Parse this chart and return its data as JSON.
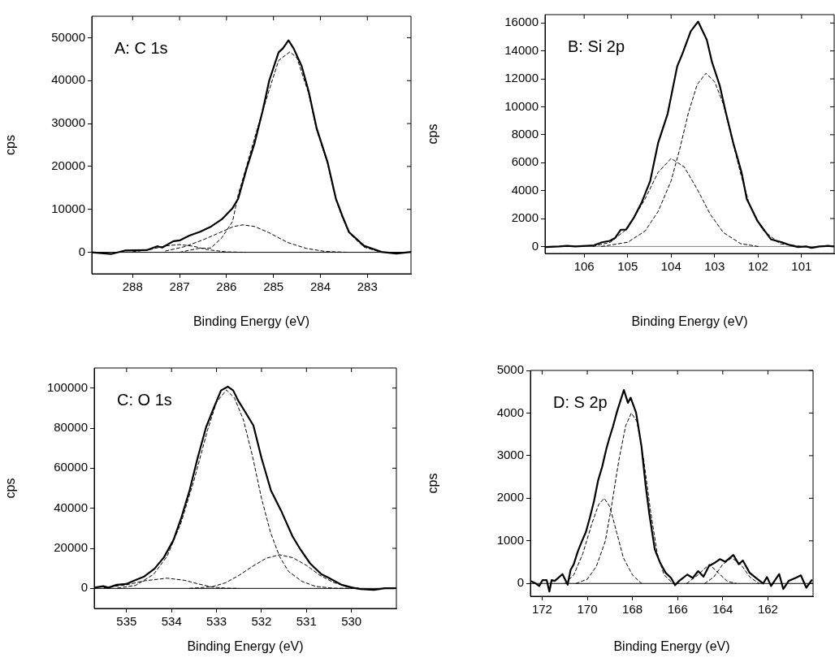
{
  "chart_data": [
    {
      "type": "line",
      "title": "A: C 1s",
      "xlabel": "Binding Energy (eV)",
      "ylabel": "cps",
      "xlim": [
        288.87,
        282.07
      ],
      "ylim": [
        -5000,
        55000
      ],
      "xticks": [
        288,
        287,
        286,
        285,
        284,
        283
      ],
      "yticks": [
        0,
        10000,
        20000,
        30000,
        40000,
        50000
      ],
      "ref_lines": [
        {
          "axis": "y",
          "value": 0,
          "color": "#000000"
        }
      ],
      "series": [
        {
          "color": "#000000",
          "line_style": "solid",
          "x": [
            288.87,
            288.46,
            288.17,
            287.7,
            287.48,
            287.37,
            287.13,
            286.99,
            286.79,
            286.56,
            286.33,
            286.1,
            285.87,
            285.75,
            285.58,
            285.4,
            285.23,
            285.09,
            284.89,
            284.8,
            284.68,
            284.57,
            284.4,
            284.25,
            284.08,
            283.85,
            283.67,
            283.53,
            283.39,
            283.07,
            282.7,
            282.38,
            282.07
          ],
          "values": [
            0,
            -400,
            400,
            500,
            1400,
            1100,
            2600,
            2800,
            3900,
            4800,
            6000,
            7700,
            10300,
            12500,
            19200,
            25500,
            33000,
            40000,
            46600,
            47500,
            49400,
            47500,
            43400,
            37500,
            28900,
            21100,
            12500,
            8400,
            4700,
            1500,
            100,
            -300,
            100
          ]
        },
        {
          "color": "#000000",
          "line_style": "dashed",
          "x": [
            287.0,
            286.6,
            286.33,
            286.1,
            285.87,
            285.75,
            285.58,
            285.35,
            285.1,
            284.89,
            284.65,
            284.5,
            284.25,
            284.08,
            283.85,
            283.67,
            283.53,
            283.39,
            283.07,
            282.7
          ],
          "values": [
            0,
            900,
            1000,
            3400,
            7200,
            13500,
            19800,
            28600,
            37500,
            44700,
            46700,
            45300,
            37000,
            28500,
            20800,
            12300,
            8000,
            4500,
            1200,
            0
          ]
        },
        {
          "color": "#000000",
          "line_style": "dashed",
          "x": [
            287.3,
            286.9,
            286.5,
            286.1,
            285.85,
            285.65,
            285.4,
            285.1,
            284.7,
            284.3,
            283.9,
            283.4
          ],
          "values": [
            300,
            1300,
            2900,
            4800,
            6000,
            6400,
            6000,
            4600,
            2300,
            900,
            200,
            0
          ]
        },
        {
          "color": "#000000",
          "line_style": "dashed",
          "x": [
            288.0,
            287.6,
            287.3,
            287.0,
            286.7,
            286.4,
            286.0,
            285.6
          ],
          "values": [
            100,
            700,
            1500,
            1800,
            1400,
            600,
            100,
            0
          ]
        }
      ]
    },
    {
      "type": "line",
      "title": "B: Si 2p",
      "xlabel": "Binding Energy (eV)",
      "ylabel": "cps",
      "xlim": [
        106.9,
        100.25
      ],
      "ylim": [
        -500,
        16600
      ],
      "xticks": [
        106,
        105,
        104,
        103,
        102,
        101
      ],
      "yticks": [
        0,
        2000,
        4000,
        6000,
        8000,
        10000,
        12000,
        14000,
        16000
      ],
      "ref_lines": [
        {
          "axis": "y",
          "value": 0,
          "color": "#808080"
        }
      ],
      "series": [
        {
          "color": "#000000",
          "line_style": "solid",
          "x": [
            106.88,
            106.58,
            106.39,
            106.2,
            105.78,
            105.59,
            105.41,
            105.29,
            105.16,
            105.04,
            104.85,
            104.67,
            104.48,
            104.3,
            104.08,
            103.86,
            103.74,
            103.55,
            103.38,
            103.18,
            103.06,
            102.88,
            102.75,
            102.57,
            102.38,
            102.26,
            102.01,
            101.7,
            101.45,
            101.27,
            101.08,
            100.9,
            100.77,
            100.59,
            100.4,
            100.26
          ],
          "values": [
            -40,
            0,
            40,
            0,
            80,
            300,
            400,
            600,
            1200,
            1200,
            2100,
            3200,
            4700,
            7400,
            9500,
            12900,
            13800,
            15400,
            16100,
            14800,
            13200,
            11500,
            9700,
            7400,
            5300,
            3400,
            1800,
            500,
            300,
            100,
            -40,
            0,
            -100,
            0,
            40,
            0
          ]
        },
        {
          "color": "#000000",
          "line_style": "dashed",
          "x": [
            105.6,
            105.0,
            104.6,
            104.3,
            104.0,
            103.8,
            103.6,
            103.4,
            103.2,
            103.0,
            102.8,
            102.6,
            102.4,
            102.2,
            101.9,
            101.5,
            101.0
          ],
          "values": [
            0,
            300,
            1100,
            2500,
            4700,
            7000,
            9600,
            11600,
            12400,
            11800,
            10200,
            7700,
            5200,
            3000,
            1200,
            200,
            0
          ]
        },
        {
          "color": "#000000",
          "line_style": "dashed",
          "x": [
            105.8,
            105.4,
            105.0,
            104.6,
            104.3,
            104.0,
            103.7,
            103.4,
            103.1,
            102.8,
            102.4,
            102.0
          ],
          "values": [
            0,
            300,
            1300,
            3400,
            5300,
            6300,
            5700,
            4100,
            2300,
            1000,
            200,
            0
          ]
        }
      ]
    },
    {
      "type": "line",
      "title": "C: O 1s",
      "xlabel": "Binding Energy (eV)",
      "ylabel": "cps",
      "xlim": [
        535.72,
        529.0
      ],
      "ylim": [
        -10000,
        110000
      ],
      "xticks": [
        535,
        534,
        533,
        532,
        531,
        530
      ],
      "yticks": [
        0,
        20000,
        40000,
        60000,
        80000,
        100000
      ],
      "ref_lines": [
        {
          "axis": "y",
          "value": 0,
          "color": "#000000"
        }
      ],
      "series": [
        {
          "color": "#000000",
          "line_style": "solid",
          "x": [
            535.72,
            535.52,
            535.4,
            535.22,
            535.01,
            534.8,
            534.62,
            534.38,
            534.17,
            533.96,
            533.78,
            533.6,
            533.42,
            533.23,
            533.05,
            532.9,
            532.75,
            532.63,
            532.51,
            532.36,
            532.18,
            532.0,
            531.79,
            531.55,
            531.31,
            531.13,
            530.92,
            530.67,
            530.49,
            530.22,
            529.98,
            529.8,
            529.5,
            529.26,
            529.02
          ],
          "values": [
            400,
            1100,
            400,
            1800,
            2200,
            4200,
            5800,
            9800,
            15500,
            24000,
            35500,
            48900,
            65100,
            80600,
            90700,
            98800,
            100700,
            98800,
            93400,
            88000,
            81300,
            65100,
            48900,
            38100,
            26000,
            19300,
            12500,
            7100,
            5100,
            1800,
            400,
            -300,
            -700,
            100,
            100
          ]
        },
        {
          "color": "#000000",
          "line_style": "dashed",
          "x": [
            535.2,
            534.8,
            534.4,
            534.1,
            533.8,
            533.5,
            533.2,
            533.0,
            532.78,
            532.6,
            532.4,
            532.2,
            532.0,
            531.8,
            531.6,
            531.4,
            531.1,
            530.8,
            530.4,
            530.0
          ],
          "values": [
            200,
            1500,
            7000,
            16000,
            32000,
            54000,
            79000,
            93000,
            99000,
            95000,
            84000,
            66000,
            45000,
            28000,
            16000,
            8500,
            3500,
            1000,
            100,
            0
          ]
        },
        {
          "color": "#000000",
          "line_style": "dashed",
          "x": [
            533.6,
            533.1,
            532.8,
            532.5,
            532.2,
            531.9,
            531.6,
            531.3,
            531.0,
            530.7,
            530.4,
            530.1,
            529.8
          ],
          "values": [
            0,
            800,
            2800,
            6500,
            11000,
            15000,
            16800,
            15300,
            11500,
            6500,
            3000,
            800,
            0
          ]
        },
        {
          "color": "#000000",
          "line_style": "dashed",
          "x": [
            535.5,
            535.0,
            534.6,
            534.1,
            533.7,
            533.4,
            533.1,
            532.8,
            532.5
          ],
          "values": [
            300,
            1800,
            3800,
            5100,
            4000,
            2200,
            700,
            100,
            0
          ]
        }
      ]
    },
    {
      "type": "line",
      "title": "D: S 2p",
      "xlabel": "Binding Energy (eV)",
      "ylabel": "cps",
      "xlim": [
        172.52,
        160.0
      ],
      "ylim": [
        -300,
        5000
      ],
      "xticks": [
        172,
        170,
        168,
        166,
        164,
        162
      ],
      "yticks": [
        0,
        1000,
        2000,
        3000,
        4000,
        5000
      ],
      "ref_lines": [
        {
          "axis": "y",
          "value": 0,
          "color": "#000000"
        }
      ],
      "series": [
        {
          "color": "#000000",
          "line_style": "solid",
          "x": [
            172.51,
            172.28,
            172.13,
            171.98,
            171.8,
            171.68,
            171.58,
            171.44,
            171.1,
            170.87,
            170.74,
            170.6,
            170.42,
            170.24,
            170.06,
            169.88,
            169.7,
            169.52,
            169.34,
            169.16,
            169.04,
            168.86,
            168.68,
            168.56,
            168.38,
            168.2,
            168.08,
            167.84,
            167.6,
            167.42,
            167.25,
            167.01,
            166.77,
            166.53,
            166.29,
            166.11,
            165.93,
            165.57,
            165.33,
            165.09,
            164.85,
            164.61,
            164.37,
            164.13,
            163.89,
            163.53,
            163.29,
            163.11,
            162.81,
            162.45,
            162.21,
            162.04,
            161.86,
            161.5,
            161.32,
            161.08,
            160.78,
            160.54,
            160.3,
            160.06
          ],
          "values": [
            60,
            0,
            -60,
            80,
            80,
            -190,
            80,
            60,
            220,
            -30,
            320,
            450,
            750,
            990,
            1210,
            1560,
            1940,
            2420,
            2740,
            3150,
            3380,
            3690,
            4040,
            4240,
            4540,
            4240,
            4360,
            4010,
            3220,
            2320,
            1620,
            800,
            480,
            250,
            130,
            -40,
            60,
            210,
            130,
            290,
            160,
            410,
            480,
            570,
            510,
            670,
            450,
            540,
            250,
            100,
            0,
            150,
            -60,
            220,
            -130,
            60,
            130,
            190,
            -100,
            80
          ]
        },
        {
          "color": "#000000",
          "line_style": "dashed",
          "x": [
            170.5,
            170.0,
            169.6,
            169.2,
            168.9,
            168.6,
            168.3,
            168.05,
            167.8,
            167.5,
            167.2,
            166.9,
            166.6,
            166.2
          ],
          "values": [
            0,
            100,
            400,
            1000,
            1900,
            2900,
            3700,
            4000,
            3800,
            2900,
            1700,
            700,
            200,
            0
          ]
        },
        {
          "color": "#000000",
          "line_style": "dashed",
          "x": [
            171.0,
            170.6,
            170.2,
            169.8,
            169.5,
            169.25,
            169.0,
            168.7,
            168.4,
            168.0,
            167.6
          ],
          "values": [
            0,
            200,
            700,
            1400,
            1850,
            2000,
            1800,
            1200,
            600,
            200,
            0
          ]
        },
        {
          "color": "#000000",
          "line_style": "dashed",
          "x": [
            165.6,
            165.1,
            164.6,
            164.2,
            163.8,
            163.4
          ],
          "values": [
            0,
            200,
            450,
            250,
            50,
            0
          ]
        },
        {
          "color": "#000000",
          "line_style": "dashed",
          "x": [
            164.8,
            164.4,
            164.0,
            163.6,
            163.2,
            162.8,
            162.4
          ],
          "values": [
            0,
            150,
            450,
            600,
            450,
            150,
            0
          ]
        }
      ]
    }
  ]
}
